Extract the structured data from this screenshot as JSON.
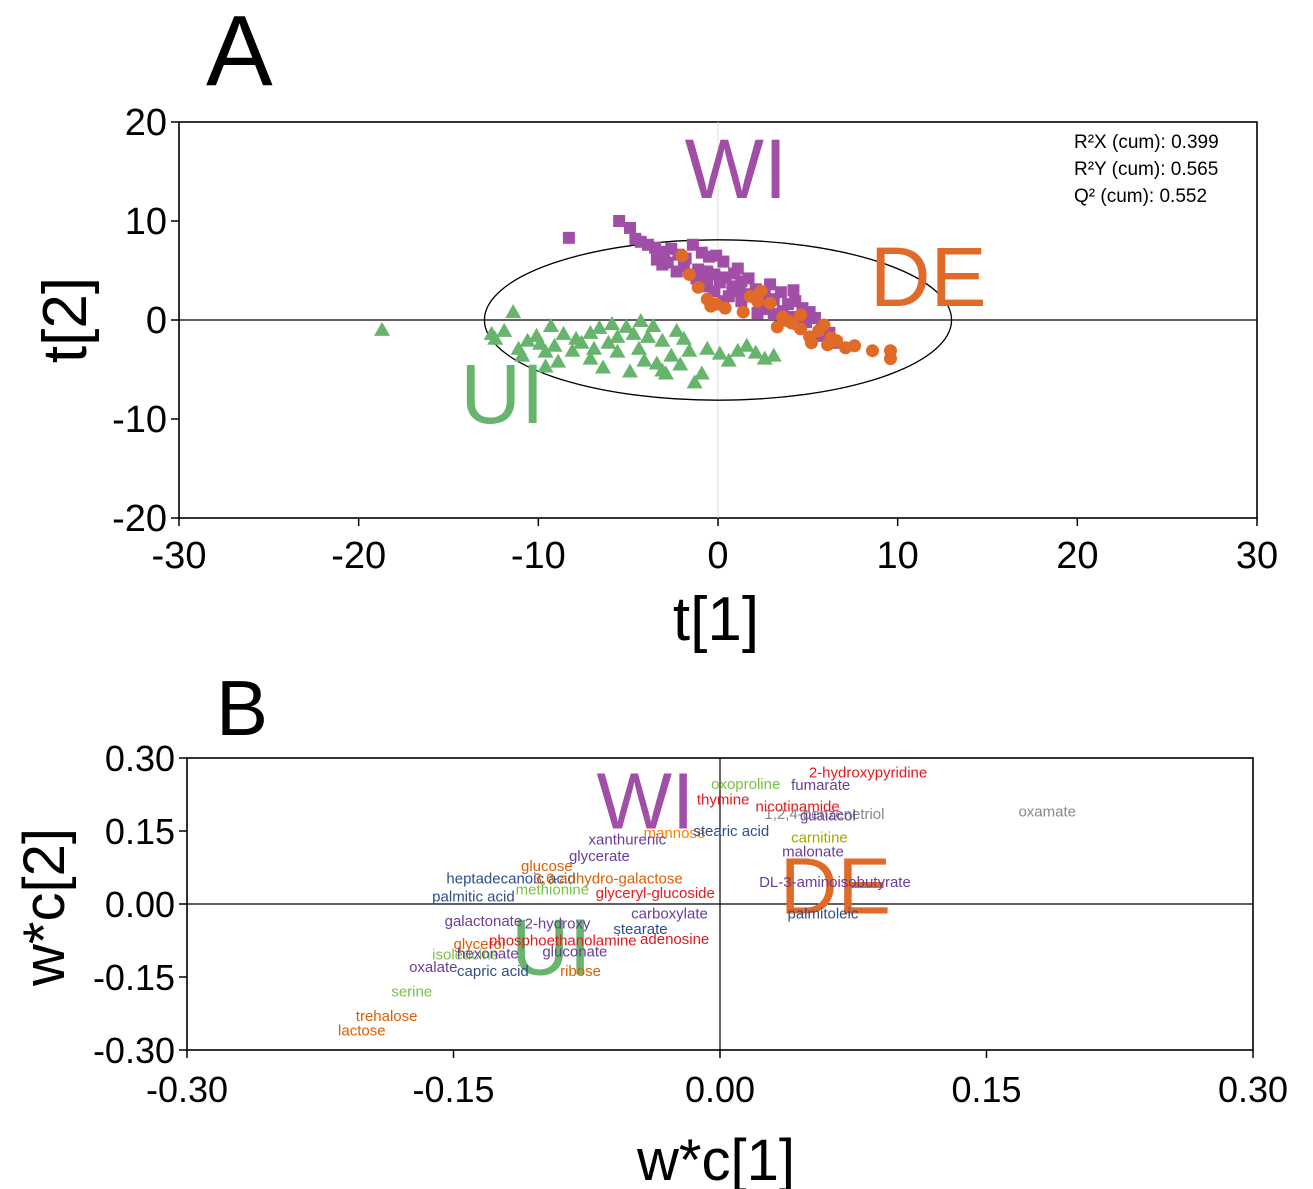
{
  "chart_data": [
    {
      "panel": "A",
      "type": "scatter",
      "xlabel": "t[1]",
      "ylabel": "t[2]",
      "xlim": [
        -30,
        30
      ],
      "ylim": [
        -20,
        20
      ],
      "xticks": [
        "-30",
        "-20",
        "-10",
        "0",
        "10",
        "20",
        "30"
      ],
      "yticks": [
        "20",
        "10",
        "0",
        "-10",
        "-20"
      ],
      "stats": [
        "R²X (cum): 0.399",
        "R²Y (cum): 0.565",
        "Q² (cum): 0.552"
      ],
      "group_labels": [
        {
          "text": "WI",
          "color": "#a04ea6",
          "at": [
            1,
            12.3
          ]
        },
        {
          "text": "DE",
          "color": "#e06a28",
          "at": [
            11.7,
            1.4
          ]
        },
        {
          "text": "UI",
          "color": "#67b46c",
          "at": [
            -12,
            -10.4
          ]
        }
      ],
      "ellipse": {
        "cx": 0,
        "cy": 0,
        "rx": 13,
        "ry": 8.1
      },
      "series": [
        {
          "marker": "square",
          "color": "#a04ea6",
          "points": [
            [
              -8.3,
              8.3
            ],
            [
              -5.5,
              10
            ],
            [
              -4.9,
              9.3
            ],
            [
              -4.6,
              8.2
            ],
            [
              -4.3,
              7.9
            ],
            [
              -3.9,
              7.6
            ],
            [
              -3.5,
              7.3
            ],
            [
              -3,
              6.9
            ],
            [
              -2.6,
              7.2
            ],
            [
              -2.2,
              6.6
            ],
            [
              -1.8,
              6.2
            ],
            [
              -1.4,
              7.6
            ],
            [
              -0.9,
              6.8
            ],
            [
              -0.5,
              6.4
            ],
            [
              -0.1,
              6.5
            ],
            [
              0.3,
              5.9
            ],
            [
              -1.1,
              5.1
            ],
            [
              -0.6,
              4.9
            ],
            [
              -0.2,
              4.6
            ],
            [
              0.4,
              4.3
            ],
            [
              0.9,
              4.7
            ],
            [
              1.3,
              3.9
            ],
            [
              1.7,
              4.2
            ],
            [
              0.8,
              3.4
            ],
            [
              1.2,
              2.9
            ],
            [
              1.7,
              2.6
            ],
            [
              2.1,
              3.1
            ],
            [
              2.6,
              2.4
            ],
            [
              3.1,
              2.1
            ],
            [
              3.5,
              2.8
            ],
            [
              3.9,
              1.6
            ],
            [
              4.3,
              1.9
            ],
            [
              4.7,
              1.2
            ],
            [
              5.1,
              0.8
            ],
            [
              5.4,
              0.2
            ],
            [
              5.8,
              -0.6
            ],
            [
              6.2,
              -1.3
            ],
            [
              6.6,
              -2.3
            ],
            [
              4.1,
              0.3
            ],
            [
              4.5,
              -0.4
            ],
            [
              -3.1,
              5.6
            ],
            [
              -2.3,
              4.9
            ],
            [
              -1.9,
              5.4
            ],
            [
              -1.2,
              4.2
            ],
            [
              -0.6,
              3.8
            ],
            [
              -0.2,
              2.9
            ],
            [
              0.6,
              2.4
            ],
            [
              1.3,
              1.9
            ],
            [
              2.3,
              1.4
            ],
            [
              3.1,
              0.6
            ],
            [
              -3.4,
              6.1
            ],
            [
              -2.8,
              5.8
            ],
            [
              0.1,
              3.8
            ],
            [
              2.7,
              1.1
            ],
            [
              3.6,
              0.9
            ],
            [
              4.9,
              -0.2
            ],
            [
              5.6,
              -1.6
            ],
            [
              1.1,
              5.2
            ],
            [
              2.9,
              3.6
            ],
            [
              4.2,
              3
            ],
            [
              -0.8,
              3.4
            ],
            [
              0.3,
              1.9
            ],
            [
              2.2,
              0.7
            ]
          ]
        },
        {
          "marker": "circle",
          "color": "#e06a28",
          "points": [
            [
              -2,
              6.5
            ],
            [
              -1.6,
              4.6
            ],
            [
              -1.1,
              3.3
            ],
            [
              -0.6,
              2.1
            ],
            [
              -0.1,
              1.6
            ],
            [
              0.4,
              1.2
            ],
            [
              1.4,
              0.8
            ],
            [
              -0.4,
              1.4
            ],
            [
              2.4,
              2.9
            ],
            [
              2.9,
              1.7
            ],
            [
              3.3,
              -0.7
            ],
            [
              3.6,
              0.3
            ],
            [
              4.1,
              -0.3
            ],
            [
              4.6,
              -0.9
            ],
            [
              5.1,
              -1.7
            ],
            [
              5.6,
              -1.1
            ],
            [
              6.1,
              -2.5
            ],
            [
              6.6,
              -2.1
            ],
            [
              7.1,
              -2.8
            ],
            [
              7.6,
              -2.6
            ],
            [
              8.6,
              -3.1
            ],
            [
              9.6,
              -3.9
            ],
            [
              9.6,
              -3.1
            ],
            [
              5.9,
              -0.5
            ],
            [
              3.9,
              -0.1
            ],
            [
              2.2,
              1.9
            ],
            [
              4.6,
              0.5
            ],
            [
              1.8,
              2.4
            ],
            [
              6.3,
              -1.8
            ],
            [
              5.2,
              -2.3
            ]
          ]
        },
        {
          "marker": "triangle",
          "color": "#67b46c",
          "points": [
            [
              -18.7,
              -1
            ],
            [
              -12.6,
              -1.4
            ],
            [
              -12.4,
              -1.9
            ],
            [
              -11.4,
              0.8
            ],
            [
              -11.9,
              -1.1
            ],
            [
              -11.1,
              -2.9
            ],
            [
              -10.6,
              -2.1
            ],
            [
              -10.1,
              -1.6
            ],
            [
              -9.6,
              -3.2
            ],
            [
              -9.6,
              -4.7
            ],
            [
              -9.3,
              -0.6
            ],
            [
              -9.1,
              -2.6
            ],
            [
              -8.6,
              -1.4
            ],
            [
              -8.1,
              -3.1
            ],
            [
              -7.6,
              -2.3
            ],
            [
              -7.1,
              -3.9
            ],
            [
              -7.1,
              -1.3
            ],
            [
              -6.6,
              -0.8
            ],
            [
              -6.1,
              -2.3
            ],
            [
              -5.6,
              -1.7
            ],
            [
              -5.6,
              -3.2
            ],
            [
              -5.1,
              -0.7
            ],
            [
              -4.7,
              -1.4
            ],
            [
              -4.4,
              -2.9
            ],
            [
              -4.1,
              -4.1
            ],
            [
              -3.9,
              -1.7
            ],
            [
              -3.6,
              -0.6
            ],
            [
              -3.1,
              -2.1
            ],
            [
              -3.1,
              -5.1
            ],
            [
              -2.6,
              -3.6
            ],
            [
              -2.3,
              -1.1
            ],
            [
              -2.1,
              -4.5
            ],
            [
              -1.6,
              -3.1
            ],
            [
              -1.3,
              -6.3
            ],
            [
              -0.6,
              -2.9
            ],
            [
              0.1,
              -3.4
            ],
            [
              0.6,
              -4.1
            ],
            [
              1.1,
              -3.1
            ],
            [
              1.6,
              -2.6
            ],
            [
              2.1,
              -3.3
            ],
            [
              2.6,
              -3.9
            ],
            [
              3.1,
              -3.6
            ],
            [
              -8.9,
              -4.2
            ],
            [
              -6.9,
              -2.9
            ],
            [
              -4.9,
              -5.2
            ],
            [
              -2.9,
              -5.4
            ],
            [
              -10.9,
              -3.6
            ],
            [
              -6.4,
              -4.8
            ],
            [
              -3.4,
              -4.4
            ],
            [
              -0.9,
              -5.4
            ],
            [
              -7.9,
              -1.9
            ],
            [
              -5.9,
              -0.4
            ],
            [
              -9.9,
              -2.4
            ],
            [
              -4.3,
              -0.1
            ],
            [
              -1.9,
              -1.9
            ]
          ]
        }
      ]
    },
    {
      "panel": "B",
      "type": "scatter",
      "xlabel": "w*c[1]",
      "ylabel": "w*c[2]",
      "xlim": [
        -0.3,
        0.3
      ],
      "ylim": [
        -0.3,
        0.3
      ],
      "xticks": [
        "-0.30",
        "-0.15",
        "0.00",
        "0.15",
        "0.30"
      ],
      "yticks": [
        "0.30",
        "0.15",
        "0.00",
        "-0.15",
        "-0.30"
      ],
      "group_labels": [
        {
          "text": "WI",
          "color": "#a04ea6",
          "at": [
            -0.042,
            0.155
          ]
        },
        {
          "text": "DE",
          "color": "#e06a28",
          "at": [
            0.065,
            -0.02
          ]
        },
        {
          "text": "UI",
          "color": "#67b46c",
          "at": [
            -0.095,
            -0.145
          ]
        }
      ],
      "labels": [
        {
          "text": "2-hydroxypyridine",
          "color": "#e41a1c",
          "at": [
            0.05,
            0.26
          ]
        },
        {
          "text": "oxoproline",
          "color": "#7ac142",
          "at": [
            -0.005,
            0.236
          ]
        },
        {
          "text": "fumarate",
          "color": "#6a3d9a",
          "at": [
            0.04,
            0.234
          ]
        },
        {
          "text": "thymine",
          "color": "#e41a1c",
          "at": [
            -0.013,
            0.204
          ]
        },
        {
          "text": "nicotinamide",
          "color": "#e41a1c",
          "at": [
            0.02,
            0.19
          ]
        },
        {
          "text": "1,2,4-benzenetriol",
          "color": "#888888",
          "at": [
            0.025,
            0.175
          ]
        },
        {
          "text": "guaiacol",
          "color": "#6a3d9a",
          "at": [
            0.045,
            0.172
          ]
        },
        {
          "text": "oxamate",
          "color": "#888888",
          "at": [
            0.168,
            0.18
          ]
        },
        {
          "text": "mannose",
          "color": "#ff7f00",
          "at": [
            -0.043,
            0.136
          ]
        },
        {
          "text": "stearic acid",
          "color": "#2c4e8c",
          "at": [
            -0.015,
            0.14
          ]
        },
        {
          "text": "carnitine",
          "color": "#a6a600",
          "at": [
            0.04,
            0.126
          ]
        },
        {
          "text": "xanthurenic",
          "color": "#6a3d9a",
          "at": [
            -0.074,
            0.122
          ]
        },
        {
          "text": "malonate",
          "color": "#6a3d9a",
          "at": [
            0.035,
            0.098
          ]
        },
        {
          "text": "glucose",
          "color": "#d95f02",
          "at": [
            -0.112,
            0.068
          ]
        },
        {
          "text": "glycerate",
          "color": "#6a3d9a",
          "at": [
            -0.085,
            0.088
          ]
        },
        {
          "text": "heptadecanoic acid",
          "color": "#2c4e8c",
          "at": [
            -0.154,
            0.042
          ]
        },
        {
          "text": "3,6-anhydro-galactose",
          "color": "#d95f02",
          "at": [
            -0.105,
            0.042
          ]
        },
        {
          "text": "methionine",
          "color": "#7ac142",
          "at": [
            -0.115,
            0.02
          ]
        },
        {
          "text": "DL-3-aminoisobutyrate",
          "color": "#6a3d9a",
          "at": [
            0.022,
            0.035
          ]
        },
        {
          "text": "palmitic acid",
          "color": "#2c4e8c",
          "at": [
            -0.162,
            0.005
          ]
        },
        {
          "text": "glyceryl-glucoside",
          "color": "#e41a1c",
          "at": [
            -0.07,
            0.012
          ]
        },
        {
          "text": "carboxylate",
          "color": "#6a3d9a",
          "at": [
            -0.05,
            -0.03
          ]
        },
        {
          "text": "palmitoleic",
          "color": "#2c4e8c",
          "at": [
            0.038,
            -0.03
          ]
        },
        {
          "text": "galactonate",
          "color": "#6a3d9a",
          "at": [
            -0.155,
            -0.045
          ]
        },
        {
          "text": "2-hydroxy",
          "color": "#6a3d9a",
          "at": [
            -0.11,
            -0.05
          ]
        },
        {
          "text": "stearate",
          "color": "#2c4e8c",
          "at": [
            -0.06,
            -0.062
          ]
        },
        {
          "text": "glycerol",
          "color": "#d95f02",
          "at": [
            -0.15,
            -0.092
          ]
        },
        {
          "text": "phosphoethanolamine",
          "color": "#e41a1c",
          "at": [
            -0.13,
            -0.085
          ]
        },
        {
          "text": "adenosine",
          "color": "#e41a1c",
          "at": [
            -0.045,
            -0.082
          ]
        },
        {
          "text": "isoleucine",
          "color": "#7ac142",
          "at": [
            -0.162,
            -0.114
          ]
        },
        {
          "text": "hexonate",
          "color": "#6a3d9a",
          "at": [
            -0.148,
            -0.112
          ]
        },
        {
          "text": "gluconate",
          "color": "#6a3d9a",
          "at": [
            -0.1,
            -0.108
          ]
        },
        {
          "text": "oxalate",
          "color": "#6a3d9a",
          "at": [
            -0.175,
            -0.14
          ]
        },
        {
          "text": "capric acid",
          "color": "#2c4e8c",
          "at": [
            -0.148,
            -0.148
          ]
        },
        {
          "text": "ribose",
          "color": "#d95f02",
          "at": [
            -0.09,
            -0.148
          ]
        },
        {
          "text": "serine",
          "color": "#7ac142",
          "at": [
            -0.185,
            -0.19
          ]
        },
        {
          "text": "trehalose",
          "color": "#d95f02",
          "at": [
            -0.205,
            -0.24
          ]
        },
        {
          "text": "lactose",
          "color": "#d95f02",
          "at": [
            -0.215,
            -0.27
          ]
        }
      ]
    }
  ],
  "panel_letters": {
    "a": "A",
    "b": "B"
  }
}
